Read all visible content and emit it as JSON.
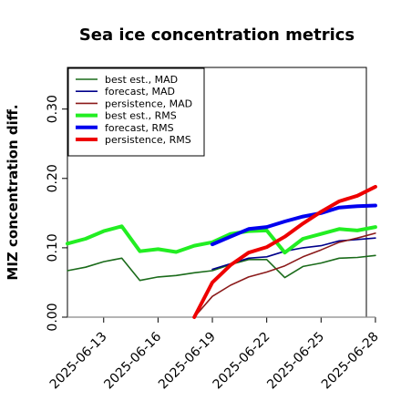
{
  "chart_data": {
    "type": "line",
    "title": "Sea ice concentration metrics",
    "xlabel": "",
    "ylabel": "MIZ concentration diff.",
    "ylim": [
      0.0,
      0.36
    ],
    "yticks": [
      "0.00",
      "0.10",
      "0.20",
      "0.30"
    ],
    "ytick_values": [
      0.0,
      0.1,
      0.2,
      0.3
    ],
    "xlim": [
      1.0,
      17.5
    ],
    "xticks": [
      "2025-06-13",
      "2025-06-16",
      "2025-06-19",
      "2025-06-22",
      "2025-06-25",
      "2025-06-28"
    ],
    "xtick_values": [
      3,
      6,
      9,
      12,
      15,
      18
    ],
    "highlighted_xtick": "2025-06-19",
    "highlight_color": "#228b22",
    "x": [
      "2025-06-11",
      "2025-06-12",
      "2025-06-13",
      "2025-06-14",
      "2025-06-15",
      "2025-06-16",
      "2025-06-17",
      "2025-06-18",
      "2025-06-19",
      "2025-06-20",
      "2025-06-21",
      "2025-06-22",
      "2025-06-23",
      "2025-06-24",
      "2025-06-25",
      "2025-06-26",
      "2025-06-27",
      "2025-06-28"
    ],
    "legend_placement": "top-left",
    "grid": false,
    "baseline": {
      "y": 0.0,
      "color": "#888888"
    },
    "series": [
      {
        "name": "best est., MAD",
        "color": "#1a6b1a",
        "width": 1.6,
        "values": [
          0.067,
          0.072,
          0.08,
          0.085,
          0.053,
          0.058,
          0.06,
          0.064,
          0.067,
          0.076,
          0.083,
          0.083,
          0.057,
          0.073,
          0.078,
          0.085,
          0.086,
          0.089
        ]
      },
      {
        "name": "forecast,  MAD",
        "color": "#00008b",
        "width": 1.6,
        "values": [
          null,
          null,
          null,
          null,
          null,
          null,
          null,
          null,
          0.069,
          0.077,
          0.085,
          0.087,
          0.095,
          0.1,
          0.103,
          0.11,
          0.112,
          0.114
        ]
      },
      {
        "name": "persistence, MAD",
        "color": "#8b1a1a",
        "width": 1.6,
        "values": [
          null,
          null,
          null,
          null,
          null,
          null,
          null,
          0.0,
          0.03,
          0.046,
          0.058,
          0.065,
          0.074,
          0.087,
          0.097,
          0.108,
          0.114,
          0.121
        ]
      },
      {
        "name": "best est., RMS",
        "color": "#22ee22",
        "width": 4,
        "values": [
          0.106,
          0.113,
          0.124,
          0.131,
          0.095,
          0.098,
          0.094,
          0.103,
          0.108,
          0.12,
          0.124,
          0.125,
          0.093,
          0.113,
          0.12,
          0.127,
          0.125,
          0.13
        ]
      },
      {
        "name": "forecast,  RMS",
        "color": "#0000ee",
        "width": 4,
        "values": [
          null,
          null,
          null,
          null,
          null,
          null,
          null,
          null,
          0.105,
          0.116,
          0.127,
          0.13,
          0.138,
          0.145,
          0.15,
          0.158,
          0.16,
          0.161
        ]
      },
      {
        "name": "persistence, RMS",
        "color": "#ee0000",
        "width": 4,
        "values": [
          null,
          null,
          null,
          null,
          null,
          null,
          null,
          0.0,
          0.05,
          0.075,
          0.093,
          0.101,
          0.116,
          0.135,
          0.152,
          0.167,
          0.175,
          0.188
        ]
      }
    ]
  }
}
